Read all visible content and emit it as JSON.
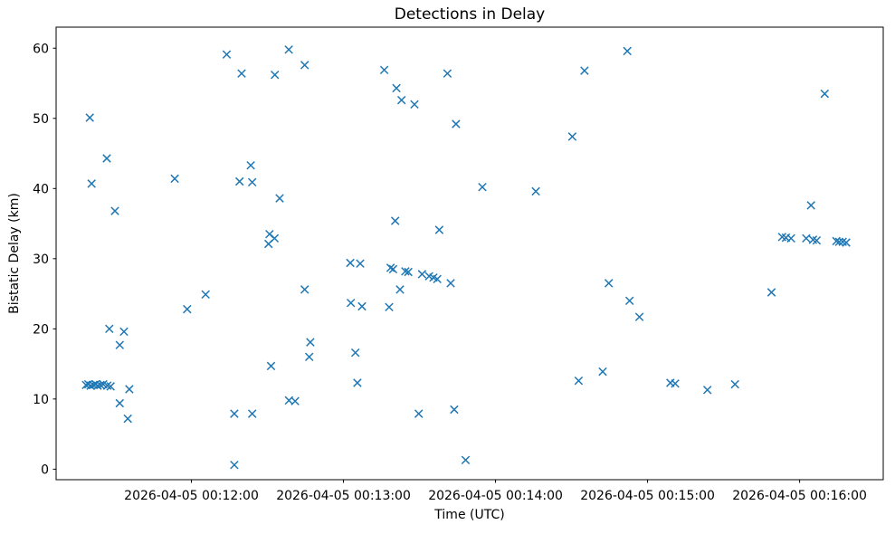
{
  "chart_data": {
    "type": "scatter",
    "title": "Detections in Delay",
    "xlabel": "Time (UTC)",
    "ylabel": "Bistatic Delay (km)",
    "marker": "x",
    "marker_color": "#1f77b4",
    "axis_color": "#000000",
    "background_color": "#ffffff",
    "grid": false,
    "legend": false,
    "x_epoch": "2026-04-05 00:11:00",
    "x_unit": "seconds after x_epoch",
    "xlim_s": [
      6.6,
      333.0
    ],
    "ylim": [
      -1.5,
      63.0
    ],
    "x_ticks": [
      {
        "s": 60,
        "label": "2026-04-05 00:12:00"
      },
      {
        "s": 120,
        "label": "2026-04-05 00:13:00"
      },
      {
        "s": 180,
        "label": "2026-04-05 00:14:00"
      },
      {
        "s": 240,
        "label": "2026-04-05 00:15:00"
      },
      {
        "s": 300,
        "label": "2026-04-05 00:16:00"
      }
    ],
    "y_ticks": [
      {
        "v": 0,
        "label": "0"
      },
      {
        "v": 10,
        "label": "10"
      },
      {
        "v": 20,
        "label": "20"
      },
      {
        "v": 30,
        "label": "30"
      },
      {
        "v": 40,
        "label": "40"
      },
      {
        "v": 50,
        "label": "50"
      },
      {
        "v": 60,
        "label": "60"
      }
    ],
    "points_s_km": [
      [
        19.9,
        50.1
      ],
      [
        20.6,
        40.7
      ],
      [
        26.6,
        44.3
      ],
      [
        29.8,
        36.8
      ],
      [
        27.6,
        20.0
      ],
      [
        33.4,
        19.6
      ],
      [
        31.7,
        17.7
      ],
      [
        18.4,
        12.0
      ],
      [
        19.3,
        12.1
      ],
      [
        20.2,
        11.9
      ],
      [
        21.3,
        12.0
      ],
      [
        22.2,
        12.1
      ],
      [
        23.0,
        11.9
      ],
      [
        24.1,
        12.0
      ],
      [
        25.2,
        12.1
      ],
      [
        26.8,
        11.9
      ],
      [
        28.1,
        11.8
      ],
      [
        35.5,
        11.4
      ],
      [
        31.7,
        9.4
      ],
      [
        34.9,
        7.2
      ],
      [
        53.4,
        41.4
      ],
      [
        58.3,
        22.8
      ],
      [
        65.6,
        24.9
      ],
      [
        73.9,
        59.1
      ],
      [
        79.8,
        56.4
      ],
      [
        83.4,
        43.3
      ],
      [
        79.0,
        41.0
      ],
      [
        84.0,
        40.9
      ],
      [
        76.9,
        7.9
      ],
      [
        84.0,
        7.9
      ],
      [
        76.9,
        0.6
      ],
      [
        98.4,
        59.8
      ],
      [
        104.7,
        57.6
      ],
      [
        92.9,
        56.2
      ],
      [
        94.8,
        38.6
      ],
      [
        90.8,
        33.5
      ],
      [
        92.8,
        32.9
      ],
      [
        90.4,
        32.1
      ],
      [
        91.4,
        14.7
      ],
      [
        98.5,
        9.8
      ],
      [
        100.9,
        9.7
      ],
      [
        104.7,
        25.6
      ],
      [
        106.9,
        18.1
      ],
      [
        106.5,
        16.0
      ],
      [
        122.7,
        29.4
      ],
      [
        126.6,
        29.3
      ],
      [
        122.9,
        23.7
      ],
      [
        127.3,
        23.2
      ],
      [
        124.7,
        16.6
      ],
      [
        125.5,
        12.3
      ],
      [
        136.1,
        56.9
      ],
      [
        140.9,
        54.3
      ],
      [
        142.9,
        52.6
      ],
      [
        148.0,
        52.0
      ],
      [
        140.4,
        35.4
      ],
      [
        138.6,
        28.7
      ],
      [
        139.6,
        28.5
      ],
      [
        144.4,
        28.2
      ],
      [
        145.6,
        28.1
      ],
      [
        138.0,
        23.1
      ],
      [
        142.3,
        25.6
      ],
      [
        151.0,
        27.8
      ],
      [
        153.8,
        27.5
      ],
      [
        155.5,
        27.3
      ],
      [
        157.0,
        27.1
      ],
      [
        162.3,
        26.5
      ],
      [
        157.8,
        34.1
      ],
      [
        161.0,
        56.4
      ],
      [
        164.4,
        49.2
      ],
      [
        149.7,
        7.9
      ],
      [
        163.7,
        8.5
      ],
      [
        168.2,
        1.3
      ],
      [
        174.8,
        40.2
      ],
      [
        195.9,
        39.6
      ],
      [
        210.3,
        47.4
      ],
      [
        215.1,
        56.8
      ],
      [
        232.0,
        59.6
      ],
      [
        224.7,
        26.5
      ],
      [
        232.9,
        24.0
      ],
      [
        236.8,
        21.7
      ],
      [
        212.8,
        12.6
      ],
      [
        222.3,
        13.9
      ],
      [
        249.0,
        12.3
      ],
      [
        250.9,
        12.2
      ],
      [
        263.6,
        11.3
      ],
      [
        274.5,
        12.1
      ],
      [
        288.9,
        25.2
      ],
      [
        293.1,
        33.1
      ],
      [
        294.6,
        33.0
      ],
      [
        296.6,
        32.9
      ],
      [
        302.6,
        32.9
      ],
      [
        305.3,
        32.7
      ],
      [
        306.7,
        32.6
      ],
      [
        314.5,
        32.5
      ],
      [
        315.6,
        32.4
      ],
      [
        317.0,
        32.4
      ],
      [
        318.4,
        32.3
      ],
      [
        304.5,
        37.6
      ],
      [
        309.9,
        53.5
      ]
    ]
  }
}
